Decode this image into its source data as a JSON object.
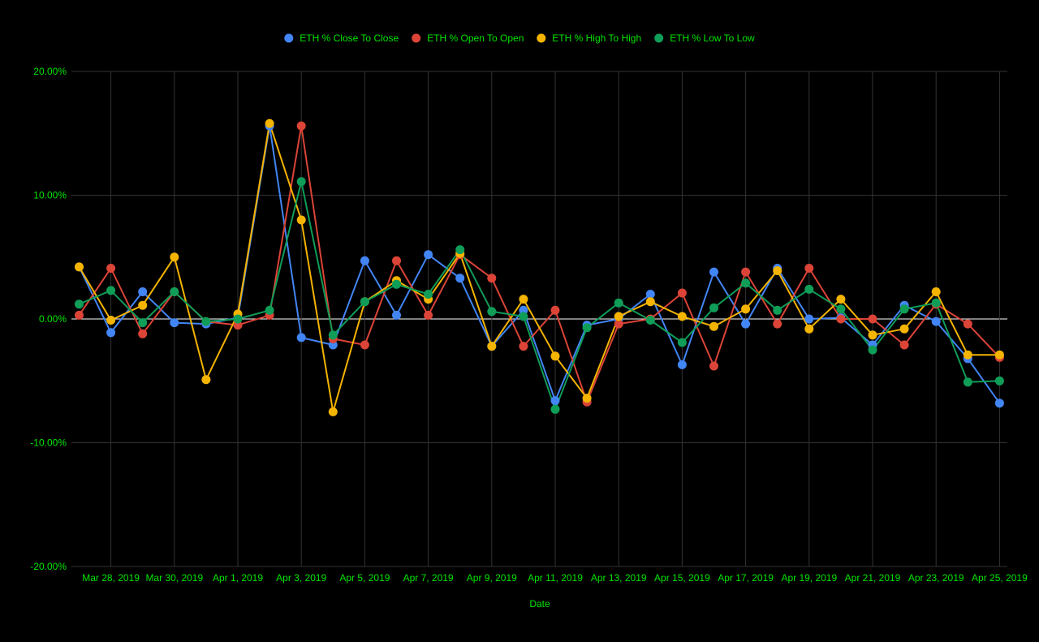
{
  "chart_data": {
    "type": "line",
    "xlabel": "Date",
    "ylabel": "",
    "ylim": [
      -20,
      20
    ],
    "y_ticks": [
      20,
      10,
      0,
      -10,
      -20
    ],
    "y_tick_labels": [
      "20.00%",
      "10.00%",
      "0.00%",
      "-10.00%",
      "-20.00%"
    ],
    "grid": true,
    "legend_position": "top",
    "x": [
      "2019-03-27",
      "2019-03-28",
      "2019-03-29",
      "2019-03-30",
      "2019-03-31",
      "2019-04-01",
      "2019-04-02",
      "2019-04-03",
      "2019-04-04",
      "2019-04-05",
      "2019-04-06",
      "2019-04-07",
      "2019-04-08",
      "2019-04-09",
      "2019-04-10",
      "2019-04-11",
      "2019-04-12",
      "2019-04-13",
      "2019-04-14",
      "2019-04-15",
      "2019-04-16",
      "2019-04-17",
      "2019-04-18",
      "2019-04-19",
      "2019-04-20",
      "2019-04-21",
      "2019-04-22",
      "2019-04-23",
      "2019-04-24",
      "2019-04-25"
    ],
    "x_tick_labels": [
      "Mar 28, 2019",
      "Mar 30, 2019",
      "Apr 1, 2019",
      "Apr 3, 2019",
      "Apr 5, 2019",
      "Apr 7, 2019",
      "Apr 9, 2019",
      "Apr 11, 2019",
      "Apr 13, 2019",
      "Apr 15, 2019",
      "Apr 17, 2019",
      "Apr 19, 2019",
      "Apr 21, 2019",
      "Apr 23, 2019",
      "Apr 25, 2019"
    ],
    "x_tick_dates": [
      "2019-03-28",
      "2019-03-30",
      "2019-04-01",
      "2019-04-03",
      "2019-04-05",
      "2019-04-07",
      "2019-04-09",
      "2019-04-11",
      "2019-04-13",
      "2019-04-15",
      "2019-04-17",
      "2019-04-19",
      "2019-04-21",
      "2019-04-23",
      "2019-04-25"
    ],
    "series": [
      {
        "name": "ETH % Close To Close",
        "color": "#4285F4",
        "values": [
          4.2,
          -1.1,
          2.2,
          -0.3,
          -0.4,
          0.1,
          15.6,
          -1.5,
          -2.1,
          4.7,
          0.3,
          5.2,
          3.3,
          -2.2,
          0.7,
          -6.6,
          -0.5,
          0.0,
          2.0,
          -3.7,
          3.8,
          -0.4,
          4.1,
          0.0,
          0.1,
          -2.1,
          1.1,
          -0.2,
          -3.2,
          -6.8
        ]
      },
      {
        "name": "ETH % Open To Open",
        "color": "#DB4437",
        "values": [
          0.3,
          4.1,
          -1.2,
          2.2,
          -0.2,
          -0.5,
          0.3,
          15.6,
          -1.6,
          -2.1,
          4.7,
          0.3,
          5.2,
          3.3,
          -2.2,
          0.7,
          -6.7,
          -0.4,
          0.0,
          2.1,
          -3.8,
          3.8,
          -0.4,
          4.1,
          0.0,
          0.0,
          -2.1,
          1.2,
          -0.4,
          -3.1
        ]
      },
      {
        "name": "ETH % High To High",
        "color": "#F4B400",
        "values": [
          4.2,
          -0.1,
          1.1,
          5.0,
          -4.9,
          0.4,
          15.8,
          8.0,
          -7.5,
          1.4,
          3.1,
          1.6,
          5.3,
          -2.2,
          1.6,
          -3.0,
          -6.4,
          0.2,
          1.4,
          0.2,
          -0.6,
          0.8,
          3.9,
          -0.8,
          1.6,
          -1.3,
          -0.8,
          2.2,
          -2.9,
          -2.9
        ]
      },
      {
        "name": "ETH % Low To Low",
        "color": "#0F9D58",
        "values": [
          1.2,
          2.3,
          -0.3,
          2.2,
          -0.2,
          0.0,
          0.7,
          11.1,
          -1.3,
          1.4,
          2.8,
          2.0,
          5.6,
          0.6,
          0.2,
          -7.3,
          -0.7,
          1.3,
          -0.1,
          -1.9,
          0.9,
          2.9,
          0.7,
          2.4,
          0.8,
          -2.5,
          0.8,
          1.3,
          -5.1,
          -5.0
        ]
      }
    ]
  },
  "colors": {
    "background": "#000000",
    "text": "#00E600",
    "grid": "#333333",
    "zero_line": "#FFFFFF"
  }
}
